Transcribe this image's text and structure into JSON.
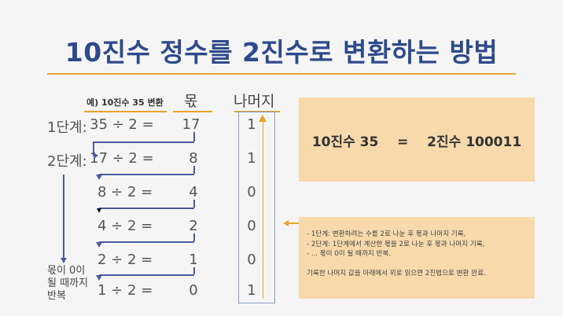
{
  "title": "10진수 정수를 2진수로 변환하는 방법",
  "example_label": "예) 10진수 35  변환",
  "headers": {
    "quotient": "몫",
    "remainder": "나머지"
  },
  "steps": [
    {
      "label": "1단계:",
      "expr": "35 ÷ 2 =",
      "quotient": "17",
      "remainder": "1"
    },
    {
      "label": "2단계:",
      "expr": "17 ÷ 2 =",
      "quotient": "8",
      "remainder": "1"
    },
    {
      "label": "",
      "expr": "8 ÷ 2 =",
      "quotient": "4",
      "remainder": "0"
    },
    {
      "label": "",
      "expr": "4 ÷ 2 =",
      "quotient": "2",
      "remainder": "0"
    },
    {
      "label": "",
      "expr": "2 ÷ 2 =",
      "quotient": "1",
      "remainder": "0"
    },
    {
      "label": "",
      "expr": "1 ÷ 2 =",
      "quotient": "0",
      "remainder": "1"
    }
  ],
  "side_note": [
    "몫이 0이",
    "될 때까지",
    "반복"
  ],
  "result": {
    "left": "10진수 35",
    "eq": "=",
    "right": "2진수 100011"
  },
  "notes": [
    "- 1단계: 변환하려는 수를 2로 나눈 후 몫과 나머지 기록,",
    "- 2단계: 1단계에서 계산한 몫을 2로 나눈 후 몫과 나머지 기록,",
    "- ... 몫이 0이 될 때까지 반복.",
    "",
    "기록한 나머지 값을 아래에서 위로 읽으면 2진법으로 변환 완료."
  ],
  "colors": {
    "title": "#2e4a8c",
    "accent": "#e8a32e",
    "box": "#f7d9ab",
    "arrow": "#4a5aa0"
  }
}
